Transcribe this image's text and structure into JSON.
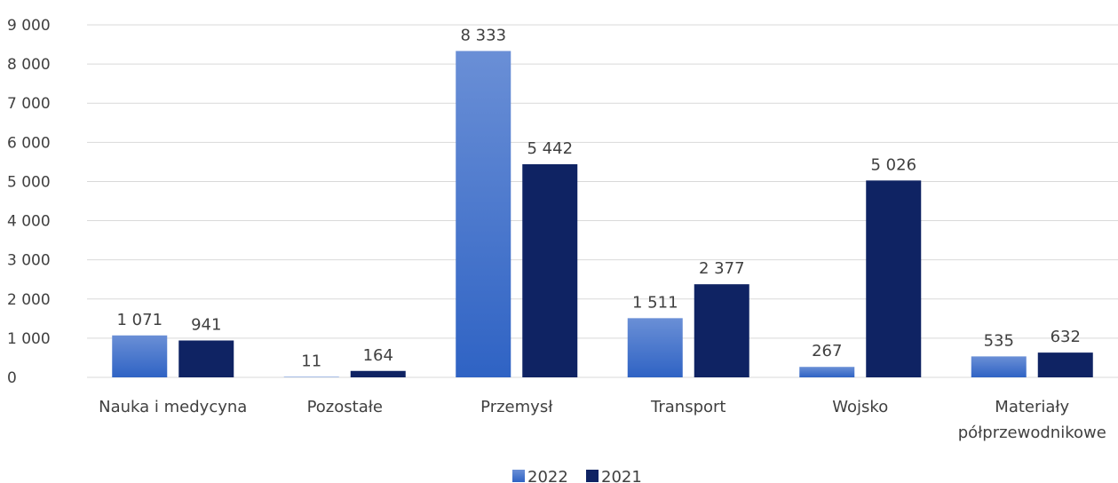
{
  "chart_data": {
    "type": "bar",
    "categories": [
      [
        "Nauka i medycyna"
      ],
      [
        "Pozostałe"
      ],
      [
        "Przemysł"
      ],
      [
        "Transport"
      ],
      [
        "Wojsko"
      ],
      [
        "Materiały",
        "półprzewodnikowe"
      ]
    ],
    "series": [
      {
        "name": "2022",
        "values": [
          1071,
          11,
          8333,
          1511,
          267,
          535
        ],
        "labels": [
          "1 071",
          "11",
          "8 333",
          "1 511",
          "267",
          "535"
        ],
        "color_top": "#6a8fd6",
        "color_bottom": "#2f63c4"
      },
      {
        "name": "2021",
        "values": [
          941,
          164,
          5442,
          2377,
          5026,
          632
        ],
        "labels": [
          "941",
          "164",
          "5 442",
          "2 377",
          "5 026",
          "632"
        ],
        "color": "#0f2363"
      }
    ],
    "yticks": [
      0,
      1000,
      2000,
      3000,
      4000,
      5000,
      6000,
      7000,
      8000,
      9000
    ],
    "ytick_labels": [
      "0",
      "1 000",
      "2 000",
      "3 000",
      "4 000",
      "5 000",
      "6 000",
      "7 000",
      "8 000",
      "9 000"
    ],
    "ylim": [
      0,
      9000
    ],
    "grid": true,
    "legend_position": "bottom-center",
    "title": "",
    "xlabel": "",
    "ylabel": ""
  }
}
